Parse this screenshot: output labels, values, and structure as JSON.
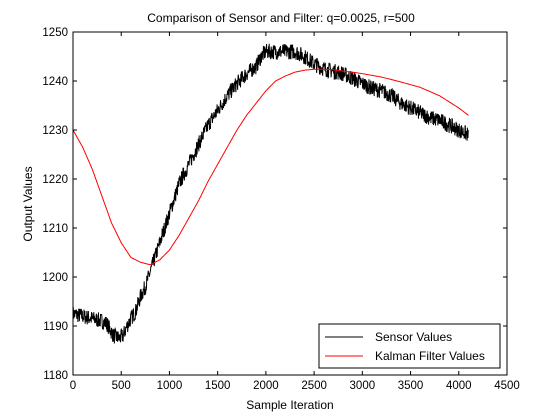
{
  "chart_data": {
    "type": "line",
    "title": "Comparison of Sensor and Filter: q=0.0025, r=500",
    "xlabel": "Sample Iteration",
    "ylabel": "Output Values",
    "xlim": [
      0,
      4500
    ],
    "ylim": [
      1180,
      1250
    ],
    "xticks": [
      0,
      500,
      1000,
      1500,
      2000,
      2500,
      3000,
      3500,
      4000,
      4500
    ],
    "yticks": [
      1180,
      1190,
      1200,
      1210,
      1220,
      1230,
      1240,
      1250
    ],
    "grid": false,
    "legend_position": "bottom-right",
    "series": [
      {
        "name": "Sensor Values",
        "color": "#000000",
        "noise_amplitude": 1.6,
        "x": [
          0,
          100,
          200,
          300,
          350,
          420,
          480,
          520,
          560,
          600,
          650,
          700,
          750,
          800,
          850,
          900,
          950,
          1000,
          1100,
          1200,
          1300,
          1400,
          1500,
          1600,
          1700,
          1800,
          1900,
          1950,
          2000,
          2100,
          2200,
          2300,
          2400,
          2500,
          2600,
          2700,
          2800,
          2900,
          3000,
          3100,
          3200,
          3300,
          3400,
          3500,
          3600,
          3700,
          3800,
          3900,
          4000,
          4100
        ],
        "y": [
          1192.5,
          1192,
          1191.5,
          1191,
          1190.5,
          1188,
          1187.5,
          1188,
          1190,
          1191.5,
          1193,
          1196,
          1198,
          1201,
          1204,
          1207,
          1210,
          1213,
          1219,
          1223,
          1227,
          1231,
          1234,
          1237,
          1239.5,
          1241.5,
          1243,
          1245,
          1246,
          1246,
          1246,
          1246,
          1245,
          1243.5,
          1242.5,
          1242,
          1241.5,
          1240.5,
          1239.5,
          1238.5,
          1238,
          1237,
          1235.5,
          1234.5,
          1233.5,
          1232.5,
          1232,
          1231,
          1230,
          1229
        ]
      },
      {
        "name": "Kalman Filter Values",
        "color": "#ff0000",
        "x": [
          0,
          100,
          200,
          300,
          400,
          500,
          600,
          700,
          800,
          900,
          1000,
          1100,
          1200,
          1300,
          1400,
          1500,
          1600,
          1700,
          1800,
          1900,
          2000,
          2100,
          2200,
          2300,
          2400,
          2500,
          2600,
          2700,
          2800,
          2900,
          3000,
          3200,
          3400,
          3600,
          3800,
          4000,
          4100
        ],
        "y": [
          1230,
          1226.5,
          1222,
          1216.5,
          1211,
          1207,
          1204,
          1203,
          1202.5,
          1203.5,
          1205.5,
          1208.5,
          1212,
          1215.5,
          1219.5,
          1223,
          1226.5,
          1230,
          1233,
          1235.5,
          1238,
          1240,
          1241,
          1241.8,
          1242.2,
          1242.4,
          1242.4,
          1242.3,
          1242,
          1241.8,
          1241.5,
          1240.8,
          1239.8,
          1238.7,
          1237,
          1234.5,
          1233
        ]
      }
    ]
  }
}
